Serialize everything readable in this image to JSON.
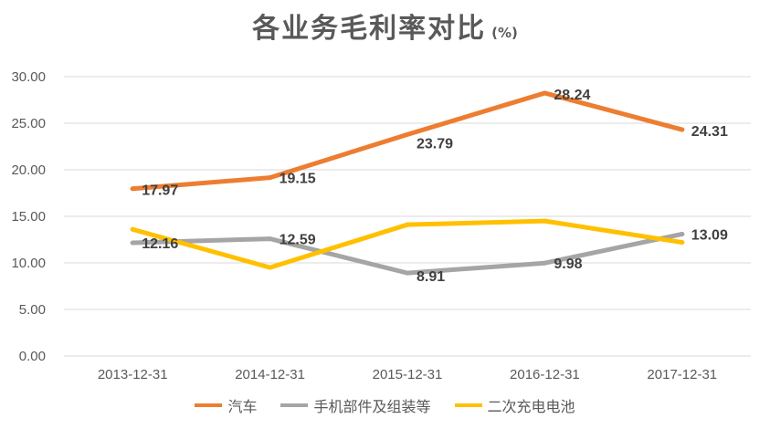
{
  "chart_data": {
    "type": "line",
    "title": "各业务毛利率对比",
    "unit": "(%)",
    "categories": [
      "2013-12-31",
      "2014-12-31",
      "2015-12-31",
      "2016-12-31",
      "2017-12-31"
    ],
    "ylim": [
      0,
      30
    ],
    "yticks": [
      "0.00",
      "5.00",
      "10.00",
      "15.00",
      "20.00",
      "25.00",
      "30.00"
    ],
    "grid": true,
    "legend_position": "bottom",
    "series": [
      {
        "name": "汽车",
        "color": "#ED7D31",
        "values": [
          17.97,
          19.15,
          23.79,
          28.24,
          24.31
        ],
        "labels": [
          "17.97",
          "19.15",
          "23.79",
          "28.24",
          "24.31"
        ]
      },
      {
        "name": "手机部件及组装等",
        "color": "#A5A5A5",
        "values": [
          12.16,
          12.59,
          8.91,
          9.98,
          13.09
        ],
        "labels": [
          "12.16",
          "12.59",
          "8.91",
          "9.98",
          "13.09"
        ]
      },
      {
        "name": "二次充电电池",
        "color": "#FFC000",
        "values": [
          13.6,
          9.5,
          14.1,
          14.5,
          12.2
        ],
        "labels": []
      }
    ]
  }
}
